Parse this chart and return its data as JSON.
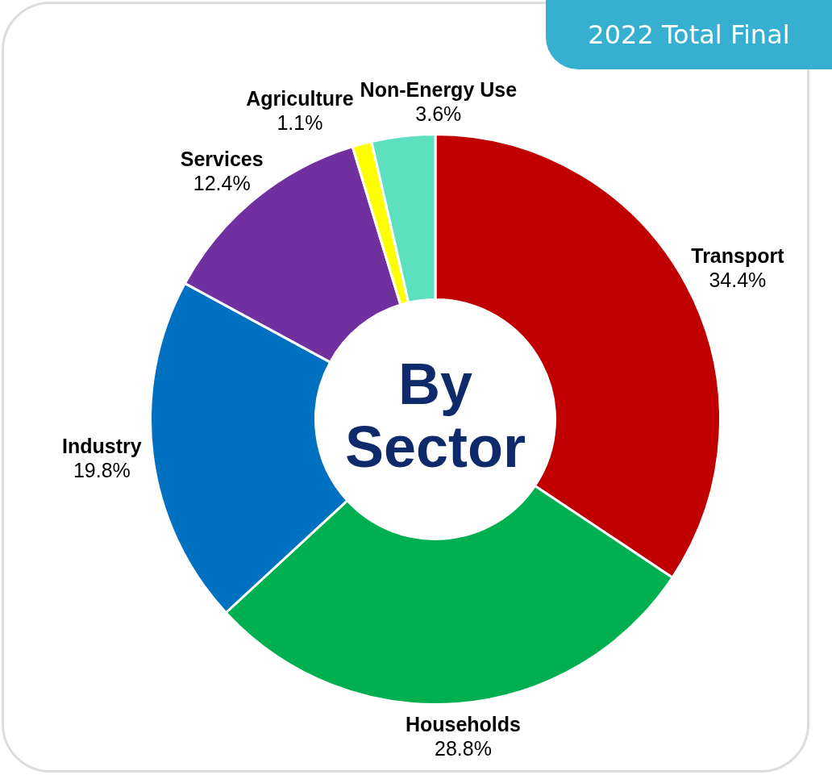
{
  "chart_data": {
    "type": "donut",
    "title": "2022 Total Final",
    "subtitle": "By Sector",
    "categories": [
      "Transport",
      "Households",
      "Industry",
      "Services",
      "Agriculture",
      "Non-Energy Use"
    ],
    "values": [
      34.4,
      28.8,
      19.8,
      12.4,
      1.1,
      3.6
    ],
    "colors": [
      "#c00000",
      "#00b050",
      "#0070c0",
      "#7030a0",
      "#ffff00",
      "#5ce0c0"
    ],
    "value_labels": [
      "34.4%",
      "28.8%",
      "19.8%",
      "12.4%",
      "1.1%",
      "3.6%"
    ]
  }
}
